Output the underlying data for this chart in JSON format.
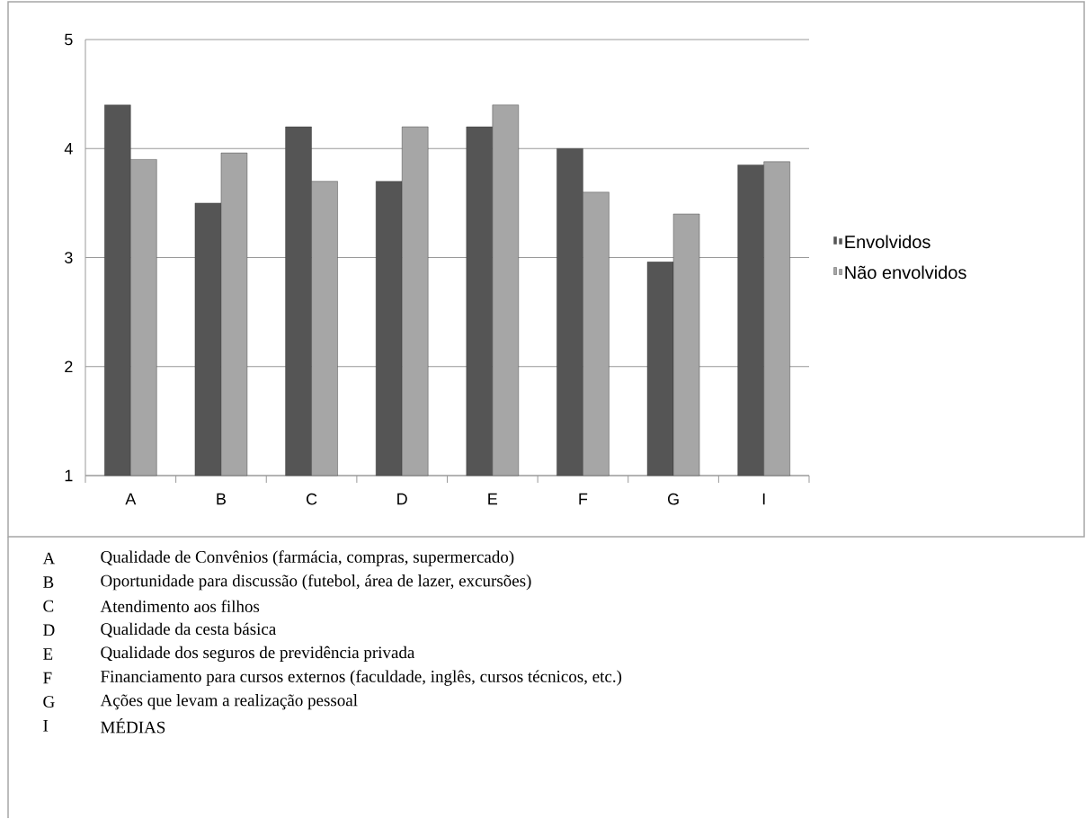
{
  "chart_data": {
    "type": "bar",
    "categories": [
      "A",
      "B",
      "C",
      "D",
      "E",
      "F",
      "G",
      "I"
    ],
    "series": [
      {
        "name": "Envolvidos",
        "color": "#555555",
        "values": [
          4.4,
          3.5,
          4.2,
          3.7,
          4.2,
          4.0,
          2.96,
          3.85
        ]
      },
      {
        "name": "Não envolvidos",
        "color": "#a6a6a6",
        "values": [
          3.9,
          3.96,
          3.7,
          4.2,
          4.4,
          3.6,
          3.4,
          3.88
        ]
      }
    ],
    "ylim": [
      1,
      5
    ],
    "yticks": [
      1,
      2,
      3,
      4,
      5
    ],
    "grid": "y",
    "legend": "right",
    "annotations": [
      "Qualidade de Convênios (farmácia, compras, supermercado)",
      "Oportunidade para discussão (futebol, área de lazer, excursões)",
      "Atendimento aos filhos",
      "Qualidade da cesta básica",
      "Qualidade dos seguros de previdência privada",
      "Financiamento para cursos externos (faculdade, inglês, cursos técnicos, etc.)",
      "Ações que levam a realização pessoal",
      "MÉDIAS"
    ]
  }
}
